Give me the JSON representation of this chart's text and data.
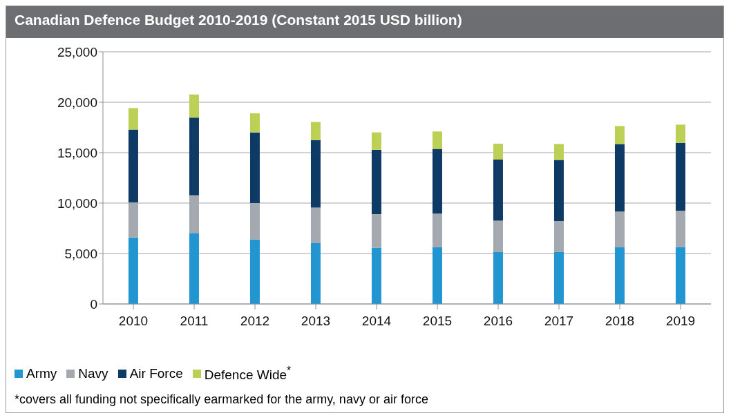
{
  "chart_data": {
    "type": "bar",
    "title": "Canadian Defence Budget 2010-2019 (Constant 2015 USD billion)",
    "stacked": true,
    "categories": [
      "2010",
      "2011",
      "2012",
      "2013",
      "2014",
      "2015",
      "2016",
      "2017",
      "2018",
      "2019"
    ],
    "series": [
      {
        "name": "Army",
        "color": "#2196d1",
        "values": [
          6600,
          7030,
          6400,
          6030,
          5580,
          5630,
          5140,
          5140,
          5610,
          5650
        ]
      },
      {
        "name": "Navy",
        "color": "#a3a9af",
        "values": [
          3470,
          3740,
          3600,
          3530,
          3320,
          3320,
          3110,
          3080,
          3550,
          3600
        ]
      },
      {
        "name": "Air Force",
        "color": "#0e3a66",
        "values": [
          7220,
          7710,
          7010,
          6680,
          6380,
          6420,
          6070,
          6060,
          6700,
          6730
        ]
      },
      {
        "name": "Defence Wide$^{*}$",
        "color": "#bdd056",
        "values": [
          2130,
          2290,
          1890,
          1800,
          1730,
          1730,
          1570,
          1580,
          1780,
          1800
        ]
      }
    ],
    "ylim": [
      0,
      25000
    ],
    "yticks": [
      {
        "value": 0,
        "label": "0"
      },
      {
        "value": 5000,
        "label": "5,000"
      },
      {
        "value": 10000,
        "label": "10,000"
      },
      {
        "value": 15000,
        "label": "15,000"
      },
      {
        "value": 20000,
        "label": "20,000"
      },
      {
        "value": 25000,
        "label": "25,000"
      }
    ],
    "grid": "y",
    "legend": "bottom left",
    "annotations": [
      "*covers all funding not specifically earmarked for the army, navy or air force"
    ]
  }
}
